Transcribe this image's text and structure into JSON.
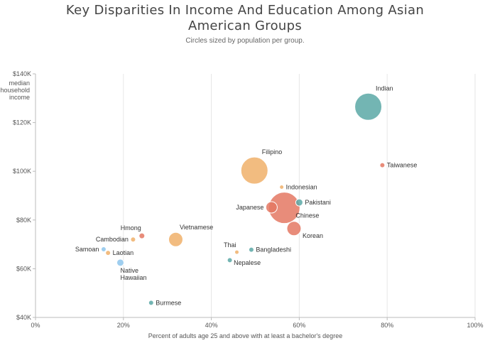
{
  "chart_data": {
    "type": "scatter",
    "title_line1": "Key Disparities In Income And Education Among Asian",
    "title_line2": "American Groups",
    "subtitle": "Circles sized by population per group.",
    "xlabel": "Percent of adults age 25 and above with at least a bachelor's degree",
    "ylabel_lines": [
      "median",
      "household",
      "income"
    ],
    "xlim": [
      0,
      100
    ],
    "ylim": [
      40000,
      140000
    ],
    "x_ticks": [
      {
        "v": 0,
        "label": "0%"
      },
      {
        "v": 20,
        "label": "20%"
      },
      {
        "v": 40,
        "label": "40%"
      },
      {
        "v": 60,
        "label": "60%"
      },
      {
        "v": 80,
        "label": "80%"
      },
      {
        "v": 100,
        "label": "100%"
      }
    ],
    "y_ticks": [
      {
        "v": 40000,
        "label": "$40K"
      },
      {
        "v": 60000,
        "label": "$60K"
      },
      {
        "v": 80000,
        "label": "$80K"
      },
      {
        "v": 100000,
        "label": "$100K"
      },
      {
        "v": 120000,
        "label": "$120K"
      },
      {
        "v": 140000,
        "label": "$140K"
      }
    ],
    "grid": "vertical",
    "colors": {
      "teal": "#5aa8a6",
      "orange": "#f0b06a",
      "red": "#e47863",
      "blue": "#8ec5ec"
    },
    "points": [
      {
        "name": "Indian",
        "x": 75.7,
        "y": 126500,
        "r": 19,
        "color": "teal",
        "labelPos": "topright"
      },
      {
        "name": "Taiwanese",
        "x": 78.9,
        "y": 102500,
        "r": 3.5,
        "color": "red",
        "labelPos": "right"
      },
      {
        "name": "Filipino",
        "x": 49.8,
        "y": 100300,
        "r": 19,
        "color": "orange",
        "labelPos": "topright"
      },
      {
        "name": "Indonesian",
        "x": 56.0,
        "y": 93500,
        "r": 3,
        "color": "orange",
        "labelPos": "right"
      },
      {
        "name": "Chinese",
        "x": 56.6,
        "y": 85000,
        "r": 22,
        "color": "red",
        "labelPos": "chinese"
      },
      {
        "name": "Pakistani",
        "x": 60.0,
        "y": 87200,
        "r": 5,
        "color": "teal",
        "labelPos": "right"
      },
      {
        "name": "Japanese",
        "x": 53.7,
        "y": 85200,
        "r": 8,
        "color": "red",
        "labelPos": "left"
      },
      {
        "name": "Korean",
        "x": 58.8,
        "y": 76500,
        "r": 10,
        "color": "red",
        "labelPos": "bottomright"
      },
      {
        "name": "Thai",
        "x": 45.8,
        "y": 66800,
        "r": 3,
        "color": "orange",
        "labelPos": "topleft"
      },
      {
        "name": "Bangladeshi",
        "x": 49.1,
        "y": 67800,
        "r": 3.5,
        "color": "teal",
        "labelPos": "right"
      },
      {
        "name": "Nepalese",
        "x": 44.2,
        "y": 63500,
        "r": 3.5,
        "color": "teal",
        "labelPos": "bottomright"
      },
      {
        "name": "Vietnamese",
        "x": 31.9,
        "y": 72000,
        "r": 10,
        "color": "orange",
        "labelPos": "topright"
      },
      {
        "name": "Hmong",
        "x": 24.2,
        "y": 73500,
        "r": 4,
        "color": "red",
        "labelPos": "topleft"
      },
      {
        "name": "Cambodian",
        "x": 22.2,
        "y": 72000,
        "r": 3.5,
        "color": "orange",
        "labelPos": "left"
      },
      {
        "name": "Samoan",
        "x": 15.5,
        "y": 68000,
        "r": 3.5,
        "color": "blue",
        "labelPos": "left"
      },
      {
        "name": "Laotian",
        "x": 16.5,
        "y": 66500,
        "r": 3.5,
        "color": "orange",
        "labelPos": "right"
      },
      {
        "name": "Native Hawaiian",
        "x": 19.3,
        "y": 62500,
        "r": 5,
        "color": "blue",
        "labelPos": "native"
      },
      {
        "name": "Burmese",
        "x": 26.3,
        "y": 46000,
        "r": 3.5,
        "color": "teal",
        "labelPos": "right"
      }
    ]
  }
}
